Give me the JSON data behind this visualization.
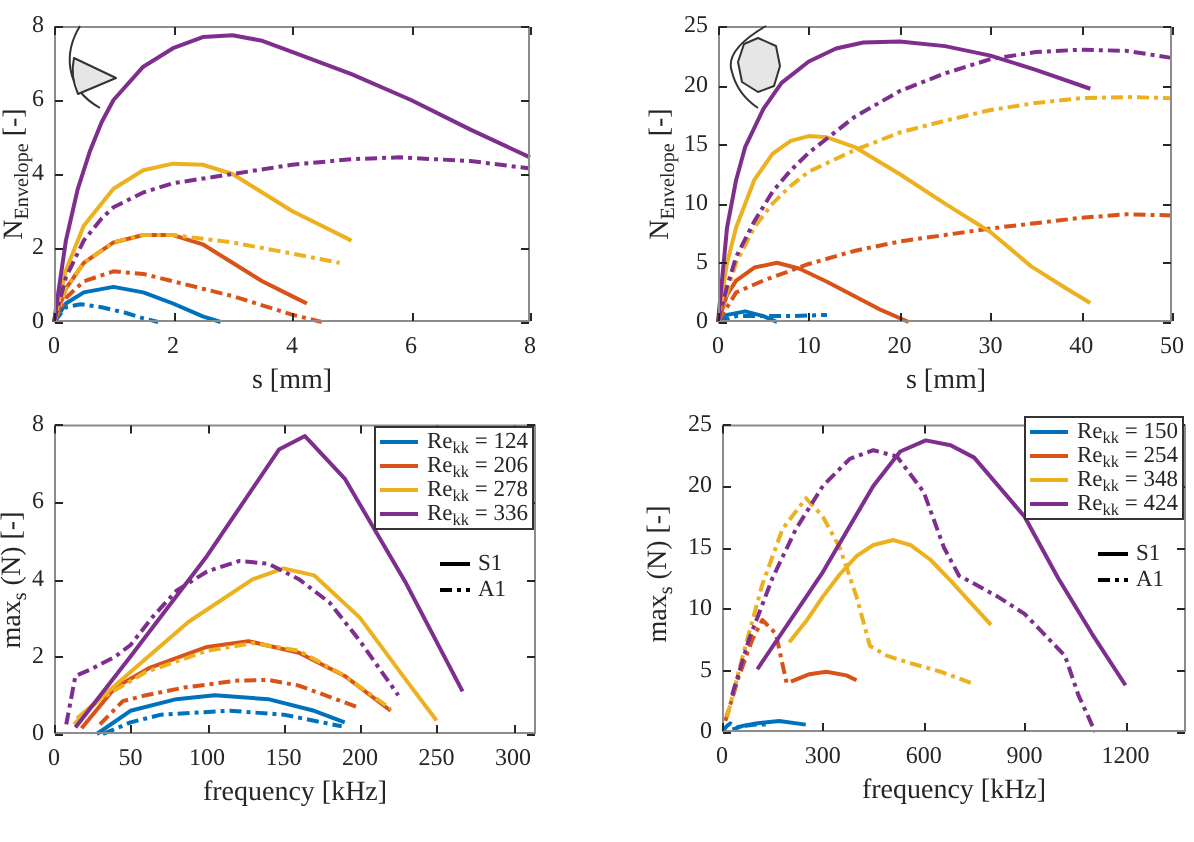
{
  "chart_data": [
    {
      "type": "line",
      "xlabel": "s [mm]",
      "ylabel": "N$_{Envelope}$ [-]",
      "xlim": [
        0,
        8
      ],
      "xticks": [
        0,
        2,
        4,
        6,
        8
      ],
      "ylim": [
        0,
        8
      ],
      "yticks": [
        0,
        2,
        4,
        6,
        8
      ],
      "series": [
        {
          "color": "#0072bd",
          "line_style": "solid",
          "x": [
            0,
            0.2,
            0.5,
            1,
            1.5,
            2,
            2.5,
            2.8
          ],
          "values": [
            0,
            0.5,
            0.8,
            0.95,
            0.8,
            0.5,
            0.15,
            0
          ]
        },
        {
          "color": "#0072bd",
          "line_style": "dashed",
          "x": [
            0,
            0.2,
            0.45,
            0.8,
            1.2,
            1.5,
            1.75
          ],
          "values": [
            0,
            0.4,
            0.48,
            0.4,
            0.25,
            0.1,
            0
          ]
        },
        {
          "color": "#d95319",
          "line_style": "solid",
          "x": [
            0,
            0.2,
            0.5,
            1,
            1.5,
            2,
            2.5,
            3,
            3.5,
            4,
            4.25
          ],
          "values": [
            0,
            0.9,
            1.6,
            2.15,
            2.35,
            2.35,
            2.1,
            1.6,
            1.1,
            0.7,
            0.5
          ]
        },
        {
          "color": "#d95319",
          "line_style": "dashed",
          "x": [
            0,
            0.2,
            0.5,
            1,
            1.5,
            2,
            2.5,
            3,
            3.5,
            4,
            4.5
          ],
          "values": [
            0,
            0.65,
            1.1,
            1.37,
            1.3,
            1.1,
            0.9,
            0.7,
            0.45,
            0.2,
            0
          ]
        },
        {
          "color": "#edb120",
          "line_style": "solid",
          "x": [
            0,
            0.2,
            0.5,
            1,
            1.5,
            2,
            2.5,
            3,
            3.5,
            4,
            4.5,
            5
          ],
          "values": [
            0,
            1.4,
            2.6,
            3.6,
            4.1,
            4.28,
            4.25,
            4.0,
            3.5,
            3.0,
            2.6,
            2.2
          ]
        },
        {
          "color": "#edb120",
          "line_style": "dashed",
          "x": [
            0,
            0.2,
            0.5,
            1,
            1.5,
            2,
            3,
            4,
            4.8
          ],
          "values": [
            0,
            0.9,
            1.6,
            2.15,
            2.35,
            2.35,
            2.15,
            1.85,
            1.6
          ]
        },
        {
          "color": "#7e2f8e",
          "line_style": "solid",
          "x": [
            0,
            0.2,
            0.4,
            0.6,
            0.8,
            1,
            1.5,
            2,
            2.5,
            3,
            3.5,
            4,
            5,
            6,
            7,
            8
          ],
          "values": [
            0,
            2.2,
            3.6,
            4.6,
            5.4,
            6.0,
            6.9,
            7.4,
            7.7,
            7.75,
            7.6,
            7.3,
            6.7,
            6.0,
            5.2,
            4.45
          ]
        },
        {
          "color": "#7e2f8e",
          "line_style": "dashed",
          "x": [
            0,
            0.2,
            0.5,
            0.8,
            1,
            1.5,
            2,
            3,
            4,
            5,
            5.8,
            7,
            8
          ],
          "values": [
            0,
            1.2,
            2.2,
            2.8,
            3.1,
            3.5,
            3.75,
            4.0,
            4.25,
            4.4,
            4.45,
            4.35,
            4.15
          ]
        }
      ]
    },
    {
      "type": "line",
      "xlabel": "s [mm]",
      "ylabel": "N$_{Envelope}$ [-]",
      "xlim": [
        0,
        50
      ],
      "xticks": [
        0,
        10,
        20,
        30,
        40,
        50
      ],
      "ylim": [
        0,
        25
      ],
      "yticks": [
        0,
        5,
        10,
        15,
        20,
        25
      ],
      "series": [
        {
          "color": "#0072bd",
          "line_style": "solid",
          "x": [
            0,
            1,
            3,
            5,
            6.5
          ],
          "values": [
            0,
            0.6,
            0.9,
            0.5,
            0
          ]
        },
        {
          "color": "#0072bd",
          "line_style": "dashed",
          "x": [
            0,
            2,
            5,
            8,
            12
          ],
          "values": [
            0,
            0.5,
            0.5,
            0.5,
            0.6
          ]
        },
        {
          "color": "#d95319",
          "line_style": "solid",
          "x": [
            0,
            1,
            2,
            4,
            6.5,
            9,
            12,
            15,
            18,
            21
          ],
          "values": [
            0,
            2.3,
            3.5,
            4.6,
            5,
            4.5,
            3.4,
            2.2,
            1,
            0
          ]
        },
        {
          "color": "#d95319",
          "line_style": "dashed",
          "x": [
            0,
            2,
            5,
            10,
            15,
            20,
            30,
            40,
            45,
            50
          ],
          "values": [
            0,
            2.5,
            3.5,
            4.9,
            6,
            6.8,
            7.9,
            8.8,
            9.1,
            9
          ]
        },
        {
          "color": "#edb120",
          "line_style": "solid",
          "x": [
            0,
            1,
            2,
            4,
            6,
            8,
            10,
            12,
            15,
            20,
            25,
            30,
            34.5,
            38,
            41
          ],
          "values": [
            0,
            5,
            8,
            12,
            14.2,
            15.3,
            15.7,
            15.6,
            14.8,
            12.5,
            10,
            7.6,
            4.7,
            3,
            1.6
          ]
        },
        {
          "color": "#edb120",
          "line_style": "dashed",
          "x": [
            0,
            2,
            4,
            6,
            8,
            10,
            15,
            20,
            25,
            30,
            35,
            40,
            45,
            50
          ],
          "values": [
            0,
            5,
            8,
            10,
            11.5,
            12.7,
            14.5,
            16,
            17,
            17.9,
            18.5,
            18.9,
            19,
            18.9
          ]
        },
        {
          "color": "#7e2f8e",
          "line_style": "solid",
          "x": [
            0,
            1,
            2,
            3,
            5,
            7,
            10,
            13,
            16,
            20,
            25,
            30,
            35,
            41
          ],
          "values": [
            0,
            8,
            12,
            14.8,
            18,
            20.2,
            22,
            23.1,
            23.6,
            23.7,
            23.3,
            22.5,
            21.3,
            19.7
          ]
        },
        {
          "color": "#7e2f8e",
          "line_style": "dashed",
          "x": [
            0,
            1,
            2,
            4,
            6,
            8,
            10,
            12,
            15,
            20,
            25,
            30,
            35,
            40,
            45,
            50
          ],
          "values": [
            0,
            3,
            5.5,
            8.5,
            11,
            12.8,
            14.3,
            15.5,
            17.3,
            19.5,
            21,
            22.2,
            22.8,
            23,
            22.9,
            22.3
          ]
        }
      ]
    },
    {
      "type": "line",
      "xlabel": "frequency [kHz]",
      "ylabel": "max$_{s}$ (N) [-]",
      "xlim": [
        0,
        315
      ],
      "xticks": [
        0,
        50,
        100,
        150,
        200,
        250,
        300
      ],
      "ylim": [
        0,
        8
      ],
      "yticks": [
        0,
        2,
        4,
        6,
        8
      ],
      "legend": "top right",
      "series": [
        {
          "name": "Re$_{kk}$ = 124",
          "color": "#0072bd",
          "line_style": "solid",
          "x": [
            28,
            50,
            80,
            105,
            140,
            170,
            190
          ],
          "values": [
            0,
            0.6,
            0.9,
            1.0,
            0.9,
            0.6,
            0.3
          ]
        },
        {
          "color": "#0072bd",
          "line_style": "dashed",
          "x": [
            32,
            50,
            70,
            115,
            150,
            188
          ],
          "values": [
            0,
            0.3,
            0.5,
            0.6,
            0.5,
            0.2
          ]
        },
        {
          "name": "Re$_{kk}$ = 206",
          "color": "#d95319",
          "line_style": "solid",
          "x": [
            18,
            40,
            62,
            100,
            127,
            160,
            190,
            220
          ],
          "values": [
            0.15,
            1.2,
            1.7,
            2.25,
            2.4,
            2.1,
            1.5,
            0.6
          ]
        },
        {
          "color": "#d95319",
          "line_style": "dashed",
          "x": [
            30,
            45,
            60,
            85,
            120,
            140,
            160,
            198
          ],
          "values": [
            0.25,
            0.85,
            1.0,
            1.2,
            1.38,
            1.4,
            1.25,
            0.7
          ]
        },
        {
          "name": "Re$_{kk}$ = 278",
          "color": "#edb120",
          "line_style": "solid",
          "x": [
            15,
            50,
            88,
            130,
            150,
            170,
            200,
            230,
            250
          ],
          "values": [
            0.4,
            1.6,
            2.9,
            4.0,
            4.28,
            4.1,
            3.0,
            1.4,
            0.35
          ]
        },
        {
          "color": "#edb120",
          "line_style": "dashed",
          "x": [
            13,
            30,
            60,
            100,
            130,
            160,
            190,
            220
          ],
          "values": [
            0.25,
            0.9,
            1.6,
            2.15,
            2.35,
            2.15,
            1.5,
            0.65
          ]
        },
        {
          "name": "Re$_{kk}$ = 336",
          "color": "#7e2f8e",
          "line_style": "solid",
          "x": [
            14,
            50,
            100,
            147,
            164,
            190,
            230,
            267
          ],
          "values": [
            0.17,
            2.0,
            4.6,
            7.35,
            7.7,
            6.6,
            3.9,
            1.1
          ]
        },
        {
          "color": "#7e2f8e",
          "line_style": "dashed",
          "x": [
            8,
            14,
            23,
            40,
            50,
            65,
            80,
            100,
            121,
            140,
            160,
            180,
            200,
            225
          ],
          "values": [
            0.25,
            1.5,
            1.65,
            2.0,
            2.3,
            3.05,
            3.7,
            4.2,
            4.47,
            4.4,
            4.0,
            3.4,
            2.4,
            1.0
          ]
        },
        {
          "name": "S1",
          "color": "#000000",
          "line_style": "solid"
        },
        {
          "name": "A1",
          "color": "#000000",
          "line_style": "dashed"
        }
      ]
    },
    {
      "type": "line",
      "xlabel": "frequency [kHz]",
      "ylabel": "max$_{s}$ (N) [-]",
      "xlim": [
        0,
        1380
      ],
      "xticks": [
        0,
        300,
        600,
        900,
        1200
      ],
      "ylim": [
        0,
        25
      ],
      "yticks": [
        0,
        5,
        10,
        15,
        20,
        25
      ],
      "legend": "top right",
      "series": [
        {
          "name": "Re$_{kk}$ = 150",
          "color": "#0072bd",
          "line_style": "solid",
          "x": [
            31,
            61,
            101,
            170,
            249
          ],
          "values": [
            0.2,
            0.5,
            0.7,
            0.9,
            0.6
          ]
        },
        {
          "color": "#0072bd",
          "line_style": "dashed",
          "x": [
            3,
            15,
            25,
            45,
            70,
            100,
            130
          ],
          "values": [
            0.1,
            0.5,
            0.7,
            0.4,
            0.5,
            0.6,
            0.6
          ]
        },
        {
          "name": "Re$_{kk}$ = 254",
          "color": "#d95319",
          "line_style": "solid",
          "x": [
            205,
            260,
            310,
            370,
            400
          ],
          "values": [
            4.1,
            4.7,
            4.9,
            4.6,
            4.2
          ]
        },
        {
          "color": "#d95319",
          "line_style": "dashed",
          "x": [
            10,
            50,
            90,
            120,
            160,
            192
          ],
          "values": [
            0.9,
            4.5,
            7.5,
            9.1,
            8,
            4
          ]
        },
        {
          "name": "Re$_{kk}$ = 348",
          "color": "#edb120",
          "line_style": "solid",
          "x": [
            200,
            250,
            300,
            350,
            400,
            450,
            510,
            560,
            620,
            680,
            740,
            800
          ],
          "values": [
            7.3,
            9,
            11,
            12.8,
            14.3,
            15.2,
            15.6,
            15.2,
            14,
            12.3,
            10.5,
            8.7
          ]
        },
        {
          "color": "#edb120",
          "line_style": "dashed",
          "x": [
            15,
            60,
            120,
            180,
            250,
            300,
            350,
            400,
            440,
            490,
            560,
            650,
            740
          ],
          "values": [
            1.2,
            6,
            12,
            16.5,
            19,
            17.5,
            15,
            11,
            7,
            6.2,
            5.6,
            4.9,
            4
          ]
        },
        {
          "name": "Re$_{kk}$ = 424",
          "color": "#7e2f8e",
          "line_style": "solid",
          "x": [
            105,
            300,
            450,
            530,
            606,
            680,
            750,
            900,
            1000,
            1100,
            1200
          ],
          "values": [
            5.1,
            13,
            20,
            22.8,
            23.7,
            23.3,
            22.3,
            17.5,
            12.5,
            8,
            3.8
          ]
        },
        {
          "color": "#7e2f8e",
          "line_style": "dashed",
          "x": [
            30,
            80,
            150,
            220,
            300,
            380,
            450,
            520,
            600,
            660,
            705,
            740,
            820,
            900,
            1020,
            1060,
            1110
          ],
          "values": [
            3,
            7.5,
            12.5,
            16.5,
            20,
            22.2,
            22.9,
            22.4,
            19.5,
            15,
            12.7,
            12.2,
            11,
            9.6,
            6.2,
            3,
            0
          ]
        },
        {
          "name": "S1",
          "color": "#000000",
          "line_style": "solid"
        },
        {
          "name": "A1",
          "color": "#000000",
          "line_style": "dashed"
        }
      ]
    }
  ]
}
